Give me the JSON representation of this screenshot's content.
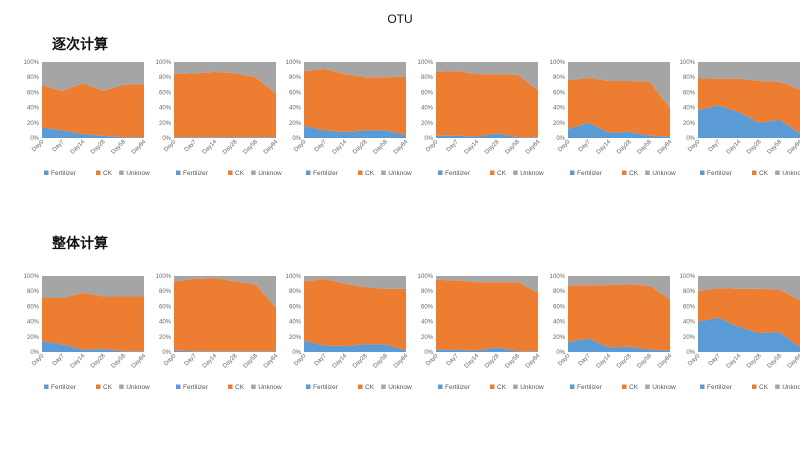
{
  "title": "OTU",
  "row_labels": [
    "逐次计算",
    "整体计算"
  ],
  "colors": {
    "Fertilizer": "#5B9BD5",
    "CK": "#ED7D31",
    "Unknow": "#A5A5A5"
  },
  "chart_data": [
    {
      "type": "area",
      "stacked": true,
      "categories": [
        "Day0",
        "Day7",
        "Day14",
        "Day28",
        "Day58",
        "Day84"
      ],
      "ylim": [
        0,
        100
      ],
      "ytick_suffix": "%",
      "legend": "bottom",
      "series": [
        {
          "name": "Fertilizer",
          "values": [
            14,
            10,
            5,
            3,
            1,
            1
          ]
        },
        {
          "name": "CK",
          "values": [
            55,
            52,
            67,
            59,
            69,
            70
          ]
        },
        {
          "name": "Unknow",
          "values": [
            31,
            38,
            28,
            38,
            30,
            29
          ]
        }
      ]
    },
    {
      "type": "area",
      "stacked": true,
      "categories": [
        "Day0",
        "Day7",
        "Day14",
        "Day28",
        "Day58",
        "Day84"
      ],
      "ylim": [
        0,
        100
      ],
      "ytick_suffix": "%",
      "legend": "bottom",
      "series": [
        {
          "name": "Fertilizer",
          "values": [
            1,
            1,
            1,
            1,
            1,
            1
          ]
        },
        {
          "name": "CK",
          "values": [
            83,
            84,
            86,
            84,
            79,
            57
          ]
        },
        {
          "name": "Unknow",
          "values": [
            16,
            15,
            13,
            15,
            20,
            42
          ]
        }
      ]
    },
    {
      "type": "area",
      "stacked": true,
      "categories": [
        "Day0",
        "Day7",
        "Day14",
        "Day28",
        "Day58",
        "Day84"
      ],
      "ylim": [
        0,
        100
      ],
      "ytick_suffix": "%",
      "legend": "bottom",
      "series": [
        {
          "name": "Fertilizer",
          "values": [
            16,
            10,
            8,
            10,
            10,
            4
          ]
        },
        {
          "name": "CK",
          "values": [
            72,
            81,
            76,
            70,
            70,
            77
          ]
        },
        {
          "name": "Unknow",
          "values": [
            12,
            9,
            16,
            20,
            20,
            19
          ]
        }
      ]
    },
    {
      "type": "area",
      "stacked": true,
      "categories": [
        "Day0",
        "Day7",
        "Day14",
        "Day28",
        "Day58",
        "Day84"
      ],
      "ylim": [
        0,
        100
      ],
      "ytick_suffix": "%",
      "legend": "bottom",
      "series": [
        {
          "name": "Fertilizer",
          "values": [
            3,
            3,
            2,
            6,
            1,
            1
          ]
        },
        {
          "name": "CK",
          "values": [
            84,
            85,
            82,
            78,
            82,
            62
          ]
        },
        {
          "name": "Unknow",
          "values": [
            13,
            12,
            16,
            16,
            17,
            37
          ]
        }
      ]
    },
    {
      "type": "area",
      "stacked": true,
      "categories": [
        "Day0",
        "Day7",
        "Day14",
        "Day28",
        "Day58",
        "Day84"
      ],
      "ylim": [
        0,
        100
      ],
      "ytick_suffix": "%",
      "legend": "bottom",
      "series": [
        {
          "name": "Fertilizer",
          "values": [
            12,
            20,
            7,
            8,
            3,
            2
          ]
        },
        {
          "name": "CK",
          "values": [
            64,
            59,
            68,
            67,
            71,
            37
          ]
        },
        {
          "name": "Unknow",
          "values": [
            24,
            21,
            25,
            25,
            26,
            61
          ]
        }
      ]
    },
    {
      "type": "area",
      "stacked": true,
      "categories": [
        "Day0",
        "Day7",
        "Day14",
        "Day28",
        "Day58",
        "Day84"
      ],
      "ylim": [
        0,
        100
      ],
      "ytick_suffix": "%",
      "legend": "bottom",
      "series": [
        {
          "name": "Fertilizer",
          "values": [
            37,
            43,
            34,
            20,
            24,
            6
          ]
        },
        {
          "name": "CK",
          "values": [
            42,
            35,
            44,
            55,
            50,
            58
          ]
        },
        {
          "name": "Unknow",
          "values": [
            21,
            22,
            22,
            25,
            26,
            36
          ]
        }
      ]
    },
    {
      "type": "area",
      "stacked": true,
      "categories": [
        "Day0",
        "Day7",
        "Day14",
        "Day28",
        "Day58",
        "Day84"
      ],
      "ylim": [
        0,
        100
      ],
      "ytick_suffix": "%",
      "legend": "bottom",
      "series": [
        {
          "name": "Fertilizer",
          "values": [
            14,
            10,
            3,
            4,
            1,
            1
          ]
        },
        {
          "name": "CK",
          "values": [
            57,
            61,
            75,
            69,
            72,
            72
          ]
        },
        {
          "name": "Unknow",
          "values": [
            29,
            29,
            22,
            27,
            27,
            27
          ]
        }
      ]
    },
    {
      "type": "area",
      "stacked": true,
      "categories": [
        "Day0",
        "Day7",
        "Day14",
        "Day28",
        "Day58",
        "Day84"
      ],
      "ylim": [
        0,
        100
      ],
      "ytick_suffix": "%",
      "legend": "bottom",
      "series": [
        {
          "name": "Fertilizer",
          "values": [
            2,
            1,
            1,
            1,
            1,
            1
          ]
        },
        {
          "name": "CK",
          "values": [
            91,
            95,
            96,
            92,
            88,
            57
          ]
        },
        {
          "name": "Unknow",
          "values": [
            7,
            4,
            3,
            7,
            11,
            42
          ]
        }
      ]
    },
    {
      "type": "area",
      "stacked": true,
      "categories": [
        "Day0",
        "Day7",
        "Day14",
        "Day28",
        "Day58",
        "Day84"
      ],
      "ylim": [
        0,
        100
      ],
      "ytick_suffix": "%",
      "legend": "bottom",
      "series": [
        {
          "name": "Fertilizer",
          "values": [
            15,
            8,
            8,
            10,
            10,
            2
          ]
        },
        {
          "name": "CK",
          "values": [
            78,
            88,
            82,
            75,
            73,
            81
          ]
        },
        {
          "name": "Unknow",
          "values": [
            7,
            4,
            10,
            15,
            17,
            17
          ]
        }
      ]
    },
    {
      "type": "area",
      "stacked": true,
      "categories": [
        "Day0",
        "Day7",
        "Day14",
        "Day28",
        "Day58",
        "Day84"
      ],
      "ylim": [
        0,
        100
      ],
      "ytick_suffix": "%",
      "legend": "bottom",
      "series": [
        {
          "name": "Fertilizer",
          "values": [
            3,
            3,
            2,
            6,
            1,
            1
          ]
        },
        {
          "name": "CK",
          "values": [
            92,
            91,
            90,
            86,
            91,
            77
          ]
        },
        {
          "name": "Unknow",
          "values": [
            5,
            6,
            8,
            8,
            8,
            22
          ]
        }
      ]
    },
    {
      "type": "area",
      "stacked": true,
      "categories": [
        "Day0",
        "Day7",
        "Day14",
        "Day28",
        "Day58",
        "Day84"
      ],
      "ylim": [
        0,
        100
      ],
      "ytick_suffix": "%",
      "legend": "bottom",
      "series": [
        {
          "name": "Fertilizer",
          "values": [
            13,
            18,
            6,
            7,
            3,
            2
          ]
        },
        {
          "name": "CK",
          "values": [
            74,
            70,
            82,
            82,
            84,
            67
          ]
        },
        {
          "name": "Unknow",
          "values": [
            13,
            12,
            12,
            11,
            13,
            31
          ]
        }
      ]
    },
    {
      "type": "area",
      "stacked": true,
      "categories": [
        "Day0",
        "Day7",
        "Day14",
        "Day28",
        "Day58",
        "Day84"
      ],
      "ylim": [
        0,
        100
      ],
      "ytick_suffix": "%",
      "legend": "bottom",
      "series": [
        {
          "name": "Fertilizer",
          "values": [
            40,
            45,
            33,
            25,
            26,
            6
          ]
        },
        {
          "name": "CK",
          "values": [
            40,
            39,
            50,
            58,
            56,
            62
          ]
        },
        {
          "name": "Unknow",
          "values": [
            20,
            16,
            17,
            17,
            18,
            32
          ]
        }
      ]
    }
  ]
}
